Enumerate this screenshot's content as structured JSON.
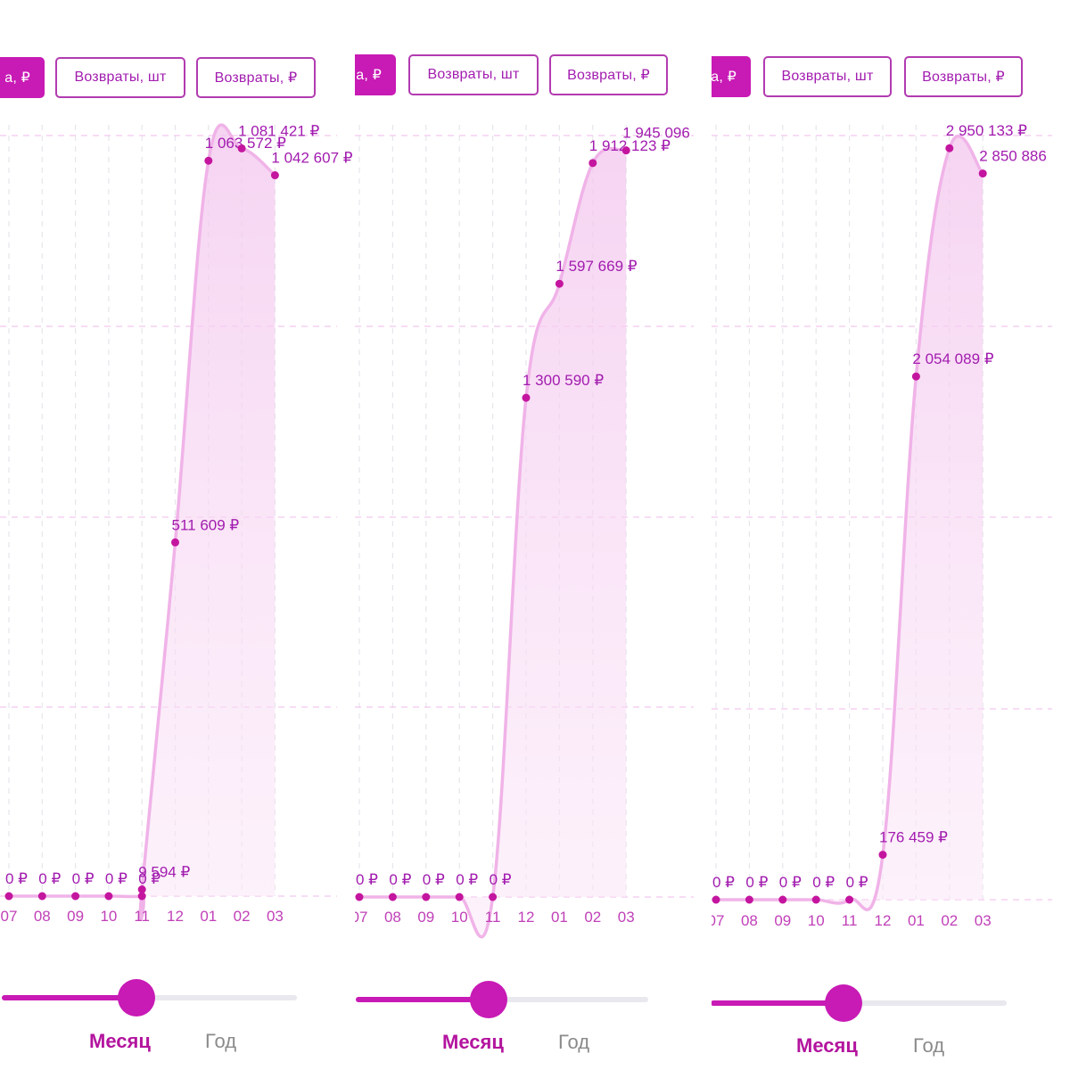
{
  "buttons": {
    "sales_partial": "а, ₽",
    "returns_qty": "Возвраты, шт",
    "returns_rub": "Возвраты, ₽"
  },
  "period": {
    "month": "Месяц",
    "year": "Год",
    "slider_position": 0.5
  },
  "colors": {
    "accent": "#c81ab5",
    "line": "#f0b3e8",
    "label": "#a21caf",
    "grid": "#f4c7ef",
    "axis_text": "#c040b8"
  },
  "currency": "₽",
  "chart_data": [
    {
      "type": "area",
      "categories": [
        "07",
        "08",
        "09",
        "10",
        "11",
        "12",
        "01",
        "02",
        "03"
      ],
      "values": [
        0,
        0,
        0,
        0,
        0,
        9594,
        511609,
        1063572,
        1081421,
        1042607
      ],
      "labels": [
        "0 ₽",
        "0 ₽",
        "0 ₽",
        "0 ₽",
        "0 ₽",
        "9 594 ₽",
        "511 609 ₽",
        "1 063 572 ₽",
        "1 081 421 ₽",
        "1 042 607 ₽"
      ],
      "x_positions": [
        0,
        1,
        2,
        3,
        4,
        4,
        5,
        6,
        7,
        8
      ],
      "ylim": [
        0,
        1100000
      ]
    },
    {
      "type": "area",
      "categories": [
        "07",
        "08",
        "09",
        "10",
        "11",
        "12",
        "01",
        "02",
        "03"
      ],
      "values": [
        0,
        0,
        0,
        0,
        0,
        1300590,
        1597669,
        1912123,
        1945096
      ],
      "labels": [
        "0 ₽",
        "0 ₽",
        "0 ₽",
        "0 ₽",
        "0 ₽",
        "1 300 590 ₽",
        "1 597 669 ₽",
        "1 912 123 ₽",
        "1 945 096"
      ],
      "x_positions": [
        0,
        1,
        2,
        3,
        4,
        5,
        6,
        7,
        8
      ],
      "ylim": [
        0,
        2000000
      ]
    },
    {
      "type": "area",
      "categories": [
        "07",
        "08",
        "09",
        "10",
        "11",
        "12",
        "01",
        "02",
        "03"
      ],
      "values": [
        0,
        0,
        0,
        0,
        0,
        176459,
        2054089,
        2950133,
        2850886
      ],
      "labels": [
        "0 ₽",
        "0 ₽",
        "0 ₽",
        "0 ₽",
        "0 ₽",
        "176 459 ₽",
        "2 054 089 ₽",
        "2 950 133 ₽",
        "2 850 886"
      ],
      "x_positions": [
        0,
        1,
        2,
        3,
        4,
        5,
        6,
        7,
        8
      ],
      "ylim": [
        0,
        3000000
      ]
    }
  ]
}
